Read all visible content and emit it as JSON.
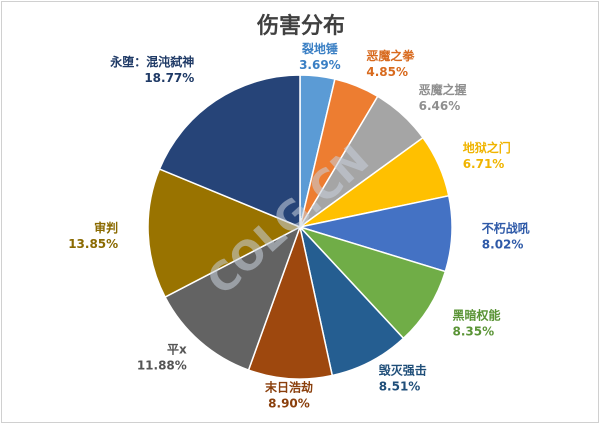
{
  "chart_data": {
    "type": "pie",
    "title": "伤害分布",
    "start_angle_deg": 0,
    "direction": "clockwise",
    "slices": [
      {
        "label": "裂地锤",
        "pct_text": "3.69%",
        "value": 3.69,
        "color": "#5b9bd5",
        "label_color": "#3a7fc4"
      },
      {
        "label": "恶魔之拳",
        "pct_text": "4.85%",
        "value": 4.85,
        "color": "#ed7d31",
        "label_color": "#d86a1e"
      },
      {
        "label": "恶魔之握",
        "pct_text": "6.46%",
        "value": 6.46,
        "color": "#a5a5a5",
        "label_color": "#8f8f8f"
      },
      {
        "label": "地狱之门",
        "pct_text": "6.71%",
        "value": 6.71,
        "color": "#ffc000",
        "label_color": "#f0b400"
      },
      {
        "label": "不朽战吼",
        "pct_text": "8.02%",
        "value": 8.02,
        "color": "#4472c4",
        "label_color": "#2f5aa8"
      },
      {
        "label": "黑暗权能",
        "pct_text": "8.35%",
        "value": 8.35,
        "color": "#70ad47",
        "label_color": "#5a9436"
      },
      {
        "label": "毁灭强击",
        "pct_text": "8.51%",
        "value": 8.51,
        "color": "#255e91",
        "label_color": "#1f4e79"
      },
      {
        "label": "末日浩劫",
        "pct_text": "8.90%",
        "value": 8.9,
        "color": "#9e480e",
        "label_color": "#8a3f0c"
      },
      {
        "label": "平x",
        "pct_text": "11.88%",
        "value": 11.88,
        "color": "#636363",
        "label_color": "#555555"
      },
      {
        "label": "审判",
        "pct_text": "13.85%",
        "value": 13.85,
        "color": "#997300",
        "label_color": "#8a6a00"
      },
      {
        "label": "永堕：混沌弑神",
        "pct_text": "18.77%",
        "value": 18.77,
        "color": "#264478",
        "label_color": "#1f3a66"
      }
    ]
  },
  "watermark": "COLG.CN"
}
